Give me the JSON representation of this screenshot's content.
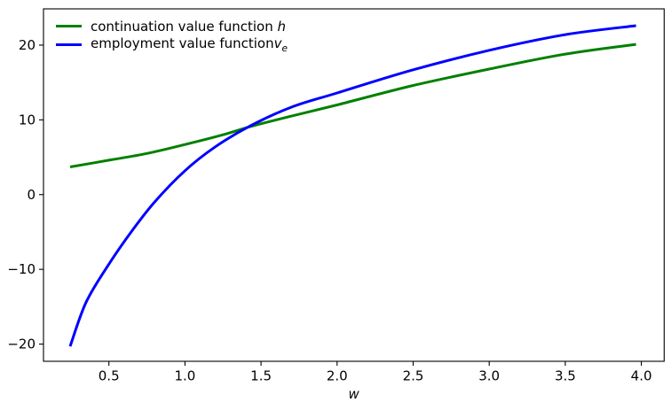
{
  "figure": {
    "background": "#ffffff",
    "axis_color": "#000000"
  },
  "legend": {
    "position": "upper left",
    "frame": false,
    "entries": [
      {
        "text": "continuation value function",
        "math": "h",
        "sub": "",
        "color": "#008000"
      },
      {
        "text": "employment value function",
        "math": "v",
        "sub": "e",
        "color": "#0000ff"
      }
    ]
  },
  "chart_data": {
    "type": "line",
    "title": "",
    "xlabel": "w",
    "ylabel": "",
    "xlim": [
      0.07,
      4.15
    ],
    "ylim": [
      -22.3,
      24.85
    ],
    "xticks": [
      0.5,
      1.0,
      1.5,
      2.0,
      2.5,
      3.0,
      3.5,
      4.0
    ],
    "yticks": [
      -20,
      -10,
      0,
      10,
      20
    ],
    "grid": false,
    "legend_position": "upper left",
    "series": [
      {
        "name": "continuation value function h",
        "color": "#008000",
        "linewidth": 3,
        "points": [
          [
            0.245,
            3.7
          ],
          [
            0.5,
            4.6
          ],
          [
            0.75,
            5.5
          ],
          [
            1.0,
            6.7
          ],
          [
            1.25,
            8.0
          ],
          [
            1.43,
            9.1
          ],
          [
            1.7,
            10.5
          ],
          [
            2.0,
            12.0
          ],
          [
            2.5,
            14.6
          ],
          [
            3.0,
            16.8
          ],
          [
            3.5,
            18.8
          ],
          [
            3.965,
            20.1
          ]
        ]
      },
      {
        "name": "employment value function v_e",
        "color": "#0000ff",
        "linewidth": 3,
        "points": [
          [
            0.245,
            -20.3
          ],
          [
            0.35,
            -14.4
          ],
          [
            0.5,
            -9.3
          ],
          [
            0.65,
            -4.9
          ],
          [
            0.8,
            -1.0
          ],
          [
            1.0,
            3.2
          ],
          [
            1.2,
            6.4
          ],
          [
            1.43,
            9.2
          ],
          [
            1.7,
            11.7
          ],
          [
            2.0,
            13.6
          ],
          [
            2.5,
            16.7
          ],
          [
            3.0,
            19.3
          ],
          [
            3.5,
            21.4
          ],
          [
            3.965,
            22.6
          ]
        ]
      }
    ]
  }
}
